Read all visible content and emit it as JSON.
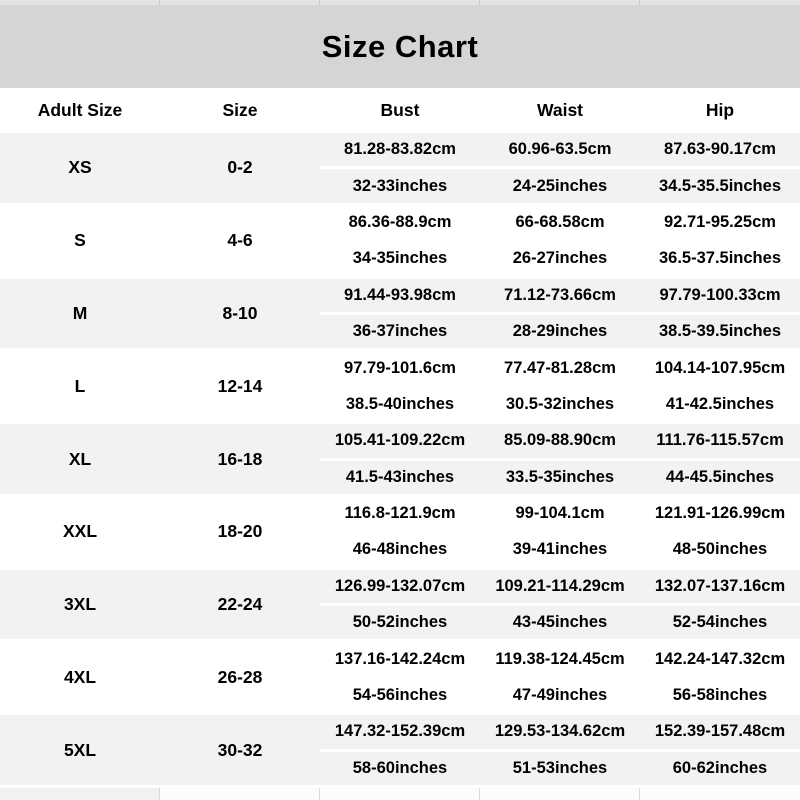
{
  "title": "Size Chart",
  "table": {
    "columns": [
      "Adult Size",
      "Size",
      "Bust",
      "Waist",
      "Hip"
    ],
    "rows": [
      {
        "adult_size": "XS",
        "size": "0-2",
        "bust_cm": "81.28-83.82cm",
        "waist_cm": "60.96-63.5cm",
        "hip_cm": "87.63-90.17cm",
        "bust_in": "32-33inches",
        "waist_in": "24-25inches",
        "hip_in": "34.5-35.5inches"
      },
      {
        "adult_size": "S",
        "size": "4-6",
        "bust_cm": "86.36-88.9cm",
        "waist_cm": "66-68.58cm",
        "hip_cm": "92.71-95.25cm",
        "bust_in": "34-35inches",
        "waist_in": "26-27inches",
        "hip_in": "36.5-37.5inches"
      },
      {
        "adult_size": "M",
        "size": "8-10",
        "bust_cm": "91.44-93.98cm",
        "waist_cm": "71.12-73.66cm",
        "hip_cm": "97.79-100.33cm",
        "bust_in": "36-37inches",
        "waist_in": "28-29inches",
        "hip_in": "38.5-39.5inches"
      },
      {
        "adult_size": "L",
        "size": "12-14",
        "bust_cm": "97.79-101.6cm",
        "waist_cm": "77.47-81.28cm",
        "hip_cm": "104.14-107.95cm",
        "bust_in": "38.5-40inches",
        "waist_in": "30.5-32inches",
        "hip_in": "41-42.5inches"
      },
      {
        "adult_size": "XL",
        "size": "16-18",
        "bust_cm": "105.41-109.22cm",
        "waist_cm": "85.09-88.90cm",
        "hip_cm": "111.76-115.57cm",
        "bust_in": "41.5-43inches",
        "waist_in": "33.5-35inches",
        "hip_in": "44-45.5inches"
      },
      {
        "adult_size": "XXL",
        "size": "18-20",
        "bust_cm": "116.8-121.9cm",
        "waist_cm": "99-104.1cm",
        "hip_cm": "121.91-126.99cm",
        "bust_in": "46-48inches",
        "waist_in": "39-41inches",
        "hip_in": "48-50inches"
      },
      {
        "adult_size": "3XL",
        "size": "22-24",
        "bust_cm": "126.99-132.07cm",
        "waist_cm": "109.21-114.29cm",
        "hip_cm": "132.07-137.16cm",
        "bust_in": "50-52inches",
        "waist_in": "43-45inches",
        "hip_in": "52-54inches"
      },
      {
        "adult_size": "4XL",
        "size": "26-28",
        "bust_cm": "137.16-142.24cm",
        "waist_cm": "119.38-124.45cm",
        "hip_cm": "142.24-147.32cm",
        "bust_in": "54-56inches",
        "waist_in": "47-49inches",
        "hip_in": "56-58inches"
      },
      {
        "adult_size": "5XL",
        "size": "30-32",
        "bust_cm": "147.32-152.39cm",
        "waist_cm": "129.53-134.62cm",
        "hip_cm": "152.39-157.48cm",
        "bust_in": "58-60inches",
        "waist_in": "51-53inches",
        "hip_in": "60-62inches"
      }
    ]
  },
  "colors": {
    "title_band": "#d5d5d5",
    "row_shade": "#f2f2f2",
    "text": "#000000"
  }
}
